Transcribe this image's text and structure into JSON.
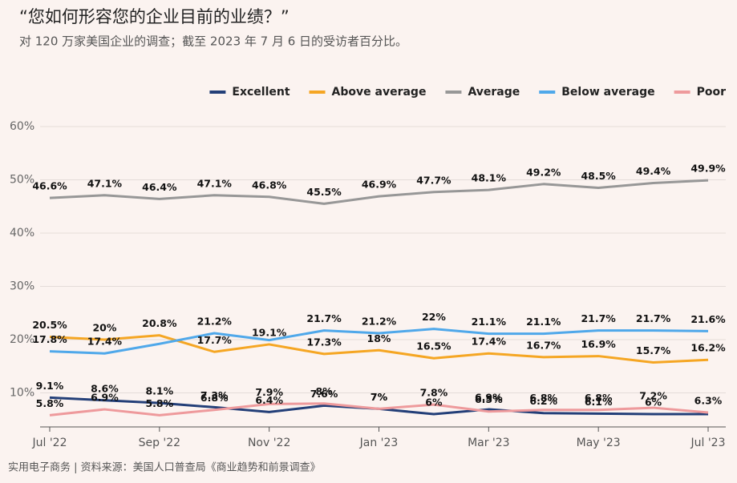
{
  "chart_data": {
    "type": "line",
    "title": "“您如何形容您的企业目前的业绩？”",
    "subtitle": "对 120 万家美国企业的调查；截至 2023 年 7 月 6 日的受访者百分比。",
    "source": "实用电子商务 | 资料来源：美国人口普查局《商业趋势和前景调查》",
    "categories": [
      "Jul '22",
      null,
      "Sep '22",
      null,
      "Nov '22",
      null,
      "Jan '23",
      null,
      "Mar '23",
      null,
      "May '23",
      null,
      "Jul '23"
    ],
    "ylim": [
      3.6,
      60
    ],
    "yticks": [
      {
        "value": 10,
        "label": "10%"
      },
      {
        "value": 20,
        "label": "20%"
      },
      {
        "value": 30,
        "label": "30%"
      },
      {
        "value": 40,
        "label": "40%"
      },
      {
        "value": 50,
        "label": "50%"
      },
      {
        "value": 60,
        "label": "60%"
      }
    ],
    "grid": true,
    "legend": "top-right",
    "series": [
      {
        "name": "Excellent",
        "color": "#233f78",
        "values": [
          9.1,
          8.6,
          8.1,
          7.3,
          6.4,
          7.6,
          7,
          6,
          6.9,
          6.2,
          6.1,
          6,
          6
        ],
        "value_labels": [
          "9.1%",
          "8.6%",
          "8.1%",
          "7.3%",
          "6.4%",
          "7.6%",
          "7%",
          "6%",
          "6.9%",
          "6.2%",
          "6.1%",
          "6%",
          null
        ]
      },
      {
        "name": "Above average",
        "color": "#f5a623",
        "values": [
          20.5,
          20,
          20.8,
          17.7,
          19.1,
          17.3,
          18,
          16.5,
          17.4,
          16.7,
          16.9,
          15.7,
          16.2
        ],
        "value_labels": [
          "20.5%",
          "20%",
          "20.8%",
          "17.7%",
          "19.1%",
          "17.3%",
          "18%",
          "16.5%",
          "17.4%",
          "16.7%",
          "16.9%",
          "15.7%",
          "16.2%"
        ]
      },
      {
        "name": "Average",
        "color": "#979797",
        "values": [
          46.6,
          47.1,
          46.4,
          47.1,
          46.8,
          45.5,
          46.9,
          47.7,
          48.1,
          49.2,
          48.5,
          49.4,
          49.9
        ],
        "value_labels": [
          "46.6%",
          "47.1%",
          "46.4%",
          "47.1%",
          "46.8%",
          "45.5%",
          "46.9%",
          "47.7%",
          "48.1%",
          "49.2%",
          "48.5%",
          "49.4%",
          "49.9%"
        ]
      },
      {
        "name": "Below average",
        "color": "#4fa8ea",
        "values": [
          17.8,
          17.4,
          19.2,
          21.2,
          19.9,
          21.7,
          21.2,
          22,
          21.1,
          21.1,
          21.7,
          21.7,
          21.6
        ],
        "value_labels": [
          "17.8%",
          "17.4%",
          null,
          "21.2%",
          null,
          "21.7%",
          "21.2%",
          "22%",
          "21.1%",
          "21.1%",
          "21.7%",
          "21.7%",
          "21.6%"
        ]
      },
      {
        "name": "Poor",
        "color": "#ee9a9c",
        "values": [
          5.8,
          6.9,
          5.8,
          6.8,
          7.9,
          8,
          7,
          7.8,
          6.5,
          6.8,
          6.8,
          7.2,
          6.3
        ],
        "value_labels": [
          "5.8%",
          "6.9%",
          "5.8%",
          "6.8%",
          "7.9%",
          "8%",
          "7%",
          "7.8%",
          "6.5%",
          "6.8%",
          "6.8%",
          "7.2%",
          "6.3%"
        ]
      }
    ]
  }
}
